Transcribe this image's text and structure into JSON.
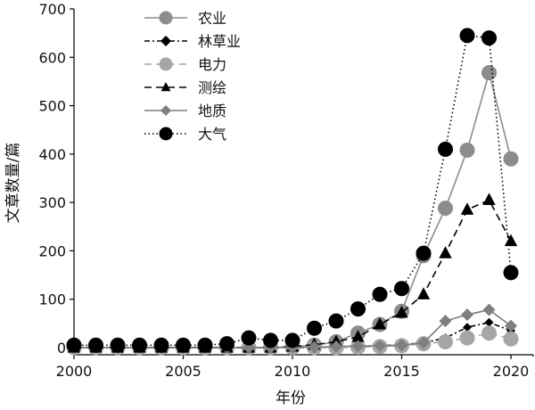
{
  "chart_data": {
    "type": "line",
    "title": "",
    "xlabel": "年份",
    "ylabel": "文章数量/篇",
    "xlim": [
      2000,
      2020
    ],
    "ylim": [
      0,
      700
    ],
    "xticks": [
      2000,
      2005,
      2010,
      2015,
      2020
    ],
    "yticks": [
      0,
      100,
      200,
      300,
      400,
      500,
      600,
      700
    ],
    "grid": false,
    "legend_position": "top-left",
    "x": [
      2000,
      2001,
      2002,
      2003,
      2004,
      2005,
      2006,
      2007,
      2008,
      2009,
      2010,
      2011,
      2012,
      2013,
      2014,
      2015,
      2016,
      2017,
      2018,
      2019,
      2020
    ],
    "series": [
      {
        "name": "农业",
        "color": "#8c8c8c",
        "line": "solid",
        "marker": "circle",
        "marker_size": 8,
        "values": [
          0,
          0,
          0,
          0,
          0,
          0,
          0,
          0,
          0,
          0,
          2,
          5,
          12,
          30,
          48,
          75,
          190,
          288,
          408,
          568,
          390
        ]
      },
      {
        "name": "林草业",
        "color": "#000000",
        "line": "dashdot",
        "marker": "diamond",
        "marker_size": 5,
        "values": [
          0,
          0,
          0,
          0,
          0,
          0,
          0,
          0,
          0,
          0,
          0,
          0,
          2,
          3,
          4,
          6,
          10,
          20,
          42,
          52,
          35
        ]
      },
      {
        "name": "电力",
        "color": "#a6a6a6",
        "line": "dashed",
        "marker": "circle",
        "marker_size": 8,
        "values": [
          0,
          0,
          0,
          0,
          0,
          0,
          0,
          0,
          0,
          0,
          0,
          0,
          0,
          1,
          2,
          4,
          8,
          12,
          20,
          30,
          18
        ]
      },
      {
        "name": "测绘",
        "color": "#000000",
        "line": "dashed",
        "marker": "triangle",
        "marker_size": 8,
        "values": [
          0,
          0,
          0,
          0,
          0,
          0,
          0,
          0,
          0,
          0,
          2,
          6,
          12,
          22,
          48,
          72,
          110,
          195,
          285,
          305,
          220
        ]
      },
      {
        "name": "地质",
        "color": "#7f7f7f",
        "line": "solid",
        "marker": "diamond",
        "marker_size": 7,
        "values": [
          0,
          0,
          0,
          0,
          0,
          0,
          0,
          0,
          0,
          0,
          0,
          1,
          2,
          3,
          4,
          5,
          10,
          55,
          68,
          78,
          45
        ]
      },
      {
        "name": "大气",
        "color": "#000000",
        "line": "dotted",
        "marker": "circle",
        "marker_size": 8,
        "values": [
          5,
          5,
          5,
          5,
          5,
          5,
          5,
          8,
          20,
          15,
          15,
          40,
          55,
          80,
          110,
          122,
          195,
          410,
          645,
          640,
          155
        ]
      }
    ]
  }
}
